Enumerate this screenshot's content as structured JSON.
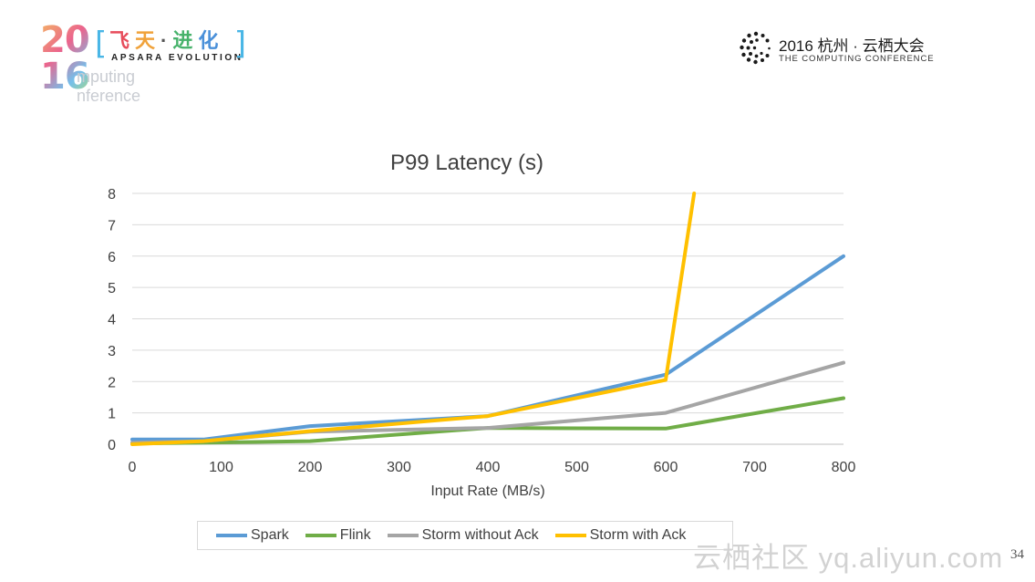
{
  "header": {
    "left_logo": {
      "year_top": "20",
      "year_bottom": "16",
      "sub_line1": "mputing",
      "sub_line2": "nference",
      "bracket_left": "[",
      "bracket_right": "]",
      "cn_chars": [
        "飞",
        "天",
        "·",
        "进",
        "化"
      ],
      "en_subtitle": "APSARA EVOLUTION"
    },
    "right_logo": {
      "title": "2016 杭州 · 云栖大会",
      "subtitle": "THE COMPUTING CONFERENCE"
    }
  },
  "chart_data": {
    "type": "line",
    "title": "P99 Latency (s)",
    "xlabel": "Input Rate (MB/s)",
    "ylabel": "",
    "xlim": [
      0,
      800
    ],
    "ylim": [
      0,
      8
    ],
    "x_ticks": [
      0,
      100,
      200,
      300,
      400,
      500,
      600,
      700,
      800
    ],
    "y_ticks": [
      0,
      1,
      2,
      3,
      4,
      5,
      6,
      7,
      8
    ],
    "grid": true,
    "legend_position": "bottom",
    "series": [
      {
        "name": "Spark",
        "color": "#5b9bd5",
        "x": [
          0,
          80,
          200,
          400,
          600,
          800
        ],
        "y": [
          0.15,
          0.15,
          0.58,
          0.9,
          2.22,
          6.0
        ]
      },
      {
        "name": "Flink",
        "color": "#70ad47",
        "x": [
          0,
          80,
          200,
          400,
          600,
          800
        ],
        "y": [
          0.02,
          0.05,
          0.1,
          0.52,
          0.5,
          1.47
        ]
      },
      {
        "name": "Storm without Ack",
        "color": "#a5a5a5",
        "x": [
          0,
          80,
          200,
          400,
          600,
          800
        ],
        "y": [
          0.05,
          0.1,
          0.4,
          0.52,
          1.0,
          2.6
        ]
      },
      {
        "name": "Storm with Ack",
        "color": "#ffc000",
        "x": [
          0,
          80,
          200,
          400,
          600,
          632
        ],
        "y": [
          0.0,
          0.1,
          0.42,
          0.9,
          2.05,
          8.0
        ]
      }
    ]
  },
  "footer": {
    "watermark": "云栖社区 yq.aliyun.com",
    "page_number": "34"
  }
}
